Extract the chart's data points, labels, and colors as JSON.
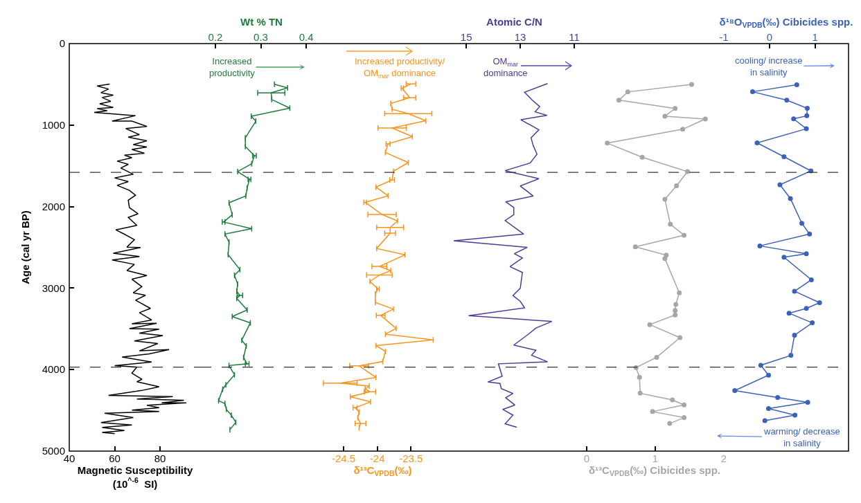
{
  "chart_data": [
    {
      "type": "line",
      "orientation": "horizontal",
      "ylabel": "Age (cal yr BP)",
      "ylim": [
        5000,
        0
      ],
      "yticks": [
        0,
        1000,
        2000,
        3000,
        4000,
        5000
      ],
      "xlabel": "Magnetic Susceptibility\n(10$^{^-6}$  SI)",
      "xlim": [
        40,
        98
      ],
      "xticks": [
        40,
        60,
        80
      ],
      "ref_lines": [
        {
          "axis": "y",
          "value": 1580,
          "line_style": "dashed",
          "color": "#333333"
        },
        {
          "axis": "y",
          "value": 3970,
          "line_style": "dashed",
          "color": "#333333"
        }
      ],
      "series": [
        {
          "color": "#000000",
          "x": [
            496,
            520,
            557,
            602,
            632,
            663,
            708,
            738,
            784,
            799,
            823,
            845,
            860,
            884,
            951,
            951,
            1017,
            1042,
            1117,
            1148,
            1193,
            1239,
            1269,
            1299,
            1345,
            1369,
            1400,
            1442,
            1481,
            1527,
            1603,
            1648,
            1694,
            1739,
            1800,
            1860,
            1921,
            2012,
            2088,
            2133,
            2230,
            2285,
            2339,
            2406,
            2497,
            2503,
            2573,
            2612,
            2655,
            2709,
            2785,
            2846,
            2891,
            2982,
            3058,
            3088,
            3149,
            3249,
            3301,
            3391,
            3437,
            3431,
            3498,
            3504,
            3552,
            3582,
            3649,
            3680,
            3770,
            3755,
            3807,
            3846,
            3907,
            3952,
            3968,
            4043,
            4119,
            4149,
            4210,
            4256,
            4316,
            4331,
            4362,
            4377,
            4407,
            4407,
            4438,
            4468,
            4498,
            4513,
            4535,
            4589,
            4650,
            4680,
            4710,
            4747,
            4771,
            4786
          ],
          "values": [
            57.8,
            52.3,
            57.3,
            54.0,
            59.4,
            54.5,
            58.3,
            53.4,
            59.4,
            52.3,
            56.7,
            51.0,
            57.8,
            69.2,
            58.9,
            67.6,
            74.2,
            64.9,
            70.9,
            66.0,
            74.2,
            68.2,
            74.2,
            67.6,
            73.1,
            64.3,
            67.6,
            61.1,
            66.0,
            62.7,
            68.2,
            60.0,
            66.0,
            61.1,
            66.5,
            69.2,
            66.0,
            66.5,
            70.3,
            66.0,
            69.8,
            60.5,
            64.3,
            68.7,
            65.4,
            71.4,
            59.4,
            70.9,
            58.9,
            68.7,
            65.4,
            74.2,
            67.6,
            72.0,
            68.2,
            73.6,
            69.2,
            75.8,
            70.9,
            76.3,
            67.6,
            78.5,
            66.5,
            79.6,
            70.9,
            81.2,
            68.7,
            79.0,
            70.9,
            84.0,
            75.2,
            63.3,
            76.3,
            60.0,
            69.8,
            67.6,
            72.0,
            69.8,
            79.6,
            72.0,
            57.3,
            85.6,
            69.8,
            90.5,
            80.7,
            91.6,
            74.2,
            79.6,
            67.6,
            79.6,
            55.6,
            68.2,
            54.0,
            67.6,
            54.5,
            64.3,
            54.5,
            60.0
          ]
        }
      ]
    },
    {
      "type": "line",
      "orientation": "horizontal",
      "ylim": [
        5000,
        0
      ],
      "tick_labels": "x",
      "xlabel": "Wt % TN",
      "xlim": [
        0.168,
        0.435
      ],
      "xticks": [
        0.2,
        0.3,
        0.4
      ],
      "ref_lines": [
        {
          "axis": "y",
          "value": 1580,
          "line_style": "dashed",
          "color": "#333333"
        },
        {
          "axis": "y",
          "value": 3970,
          "line_style": "dashed",
          "color": "#333333"
        }
      ],
      "annotations": [
        "Increased\nproductivity"
      ],
      "series": [
        {
          "color": "#1e7b3c",
          "x": [
            498,
            544,
            604,
            686,
            792,
            891,
            951,
            1156,
            1262,
            1375,
            1474,
            1570,
            1665,
            1771,
            1870,
            1952,
            2100,
            2189,
            2270,
            2337,
            2436,
            2589,
            2773,
            2843,
            2949,
            3038,
            3091,
            3126,
            3268,
            3349,
            3427,
            3639,
            3710,
            3851,
            3929,
            3950,
            4064,
            4187,
            4240,
            4382,
            4417,
            4488,
            4559,
            4647,
            4736
          ],
          "values": [
            0.33,
            0.359,
            0.323,
            0.324,
            0.364,
            0.279,
            0.289,
            0.266,
            0.266,
            0.286,
            0.28,
            0.249,
            0.275,
            0.27,
            0.267,
            0.23,
            0.237,
            0.218,
            0.28,
            0.221,
            0.23,
            0.228,
            0.254,
            0.242,
            0.249,
            0.247,
            0.254,
            0.247,
            0.27,
            0.237,
            0.277,
            0.258,
            0.268,
            0.262,
            0.27,
            0.23,
            0.242,
            0.223,
            0.216,
            0.207,
            0.221,
            0.224,
            0.235,
            0.245,
            0.232
          ],
          "errors": [
            null,
            null,
            0.03,
            null,
            null,
            null,
            null,
            null,
            null,
            0.004,
            null,
            null,
            0.003,
            null,
            null,
            null,
            null,
            0.003,
            null,
            null,
            null,
            null,
            null,
            null,
            null,
            null,
            0.006,
            null,
            null,
            null,
            null,
            null,
            null,
            null,
            0.004,
            null,
            null,
            null,
            null,
            null,
            null,
            null,
            null,
            null,
            null
          ]
        }
      ]
    },
    {
      "type": "line",
      "orientation": "horizontal",
      "ylim": [
        5000,
        0
      ],
      "tick_labels": "x",
      "xlabel": "δ¹³C$_{VPDB}$(‰)",
      "xlim": [
        -24.82,
        -23.02
      ],
      "xticks": [
        -24.5,
        -24,
        -23.5
      ],
      "ref_lines": [
        {
          "axis": "y",
          "value": 1580,
          "line_style": "dashed",
          "color": "#333333"
        },
        {
          "axis": "y",
          "value": 3970,
          "line_style": "dashed",
          "color": "#333333"
        }
      ],
      "annotations": [
        "Increased productivity/\nOM$_{mar}$ dominance"
      ],
      "series": [
        {
          "color": "#f7941d",
          "x": [
            495,
            548,
            664,
            735,
            806,
            859,
            947,
            1036,
            1142,
            1230,
            1336,
            1460,
            1566,
            1672,
            1761,
            1867,
            1948,
            2097,
            2175,
            2256,
            2327,
            2514,
            2592,
            2734,
            2787,
            2840,
            2918,
            3010,
            3070,
            3176,
            3257,
            3335,
            3494,
            3565,
            3636,
            3706,
            3777,
            3901,
            3954,
            4095,
            4166,
            4202,
            4237,
            4272,
            4333,
            4396,
            4467,
            4520,
            4591,
            4661,
            4714
          ],
          "values": [
            -23.5,
            -23.63,
            -23.52,
            -23.8,
            -23.78,
            -23.54,
            -23.28,
            -23.78,
            -23.48,
            -23.84,
            -23.88,
            -23.54,
            -23.76,
            -23.78,
            -24.02,
            -23.84,
            -24.18,
            -23.93,
            -23.7,
            -23.81,
            -23.81,
            -24.01,
            -23.59,
            -23.97,
            -23.8,
            -23.97,
            -24.11,
            -23.99,
            -24.03,
            -24.03,
            -23.76,
            -23.95,
            -23.72,
            -23.88,
            -23.17,
            -24.02,
            -23.88,
            -23.92,
            -24.27,
            -24.02,
            -24.55,
            -24.12,
            -24.18,
            -24.11,
            -24.4,
            -24.1,
            -24.33,
            -24.27,
            -24.29,
            -24.25,
            -24.27
          ],
          "errors": [
            0.07,
            0.015,
            0.09,
            null,
            null,
            0.35,
            null,
            0.21,
            null,
            0.03,
            null,
            null,
            null,
            0.035,
            null,
            null,
            0.02,
            0.21,
            null,
            0.2,
            0.08,
            null,
            null,
            0.11,
            null,
            0.19,
            null,
            0.02,
            null,
            null,
            null,
            0.065,
            null,
            null,
            null,
            null,
            null,
            null,
            0.14,
            null,
            0.25,
            null,
            null,
            0.085,
            null,
            null,
            0.03,
            null,
            null,
            0.08,
            null
          ]
        }
      ]
    },
    {
      "type": "line",
      "orientation": "horizontal",
      "ylim": [
        5000,
        0
      ],
      "tick_labels": "x",
      "xlabel": "Atomic C/N",
      "xlim": [
        15.85,
        10.59
      ],
      "xticks": [
        15,
        13,
        11
      ],
      "ref_lines": [
        {
          "axis": "y",
          "value": 1580,
          "line_style": "dashed",
          "color": "#333333"
        },
        {
          "axis": "y",
          "value": 3970,
          "line_style": "dashed",
          "color": "#333333"
        }
      ],
      "annotations": [
        "OM$_{mar}$\ndominance"
      ],
      "series": [
        {
          "color": "#4f3a98",
          "x": [
            490,
            597,
            686,
            774,
            837,
            881,
            934,
            1058,
            1156,
            1251,
            1358,
            1464,
            1559,
            1658,
            1747,
            1870,
            1941,
            2012,
            2100,
            2171,
            2337,
            2419,
            2500,
            2578,
            2631,
            2737,
            2808,
            3002,
            3091,
            3162,
            3243,
            3339,
            3409,
            3490,
            3561,
            3699,
            3763,
            3823,
            3904,
            3929,
            4081,
            4152,
            4170,
            4233,
            4293,
            4346,
            4435,
            4488,
            4559,
            4665,
            4707
          ],
          "values": [
            11.99,
            12.84,
            12.58,
            12.28,
            12.45,
            12.01,
            12.98,
            12.31,
            12.6,
            12.52,
            12.38,
            12.63,
            13.56,
            12.31,
            13.0,
            12.52,
            13.54,
            13.24,
            13.24,
            13.56,
            12.87,
            15.46,
            12.74,
            13.22,
            12.92,
            13.38,
            12.92,
            13.0,
            13.27,
            13.0,
            12.84,
            14.91,
            11.83,
            12.42,
            12.68,
            13.24,
            12.42,
            12.58,
            11.99,
            13.81,
            13.67,
            14.2,
            13.75,
            13.7,
            13.27,
            13.54,
            13.2,
            13.65,
            13.27,
            13.56,
            13.13
          ]
        }
      ]
    },
    {
      "type": "line",
      "orientation": "horizontal",
      "ylim": [
        5000,
        0
      ],
      "tick_labels": "x",
      "xlabel": "δ¹³C$_{VPDB}$(‰) Cibicides spp.",
      "xlim": [
        -0.02,
        2
      ],
      "xticks": [
        0,
        1,
        2
      ],
      "ref_lines": [
        {
          "axis": "y",
          "value": 1580,
          "line_style": "dashed",
          "color": "#333333"
        },
        {
          "axis": "y",
          "value": 3970,
          "line_style": "dashed",
          "color": "#333333"
        }
      ],
      "series": [
        {
          "color": "#a6a6a6",
          "marker": "circle",
          "x": [
            501,
            593,
            694,
            796,
            891,
            925,
            1051,
            1221,
            1394,
            1571,
            1744,
            1910,
            2216,
            2351,
            2494,
            2596,
            2637,
            3058,
            3200,
            3275,
            3329,
            3448,
            3608,
            3849,
            3975,
            4094,
            4290,
            4372,
            4433,
            4515,
            4589,
            4661
          ],
          "values": [
            1.53,
            0.6,
            0.47,
            1.29,
            1.14,
            1.73,
            1.4,
            0.3,
            0.81,
            1.47,
            1.31,
            1.14,
            1.22,
            1.42,
            0.71,
            1.16,
            1.14,
            1.35,
            1.3,
            1.29,
            1.29,
            0.92,
            1.36,
            1.02,
            0.72,
            0.77,
            0.78,
            1.25,
            1.42,
            0.96,
            1.42,
            1.21
          ]
        }
      ]
    },
    {
      "type": "line",
      "orientation": "horizontal",
      "ylim": [
        5000,
        0
      ],
      "tick_labels": "x",
      "xlabel": "δ¹⁸O$_{VPDB}$(‰) Cibicides spp.",
      "xlim": [
        -1,
        1.735
      ],
      "xticks": [
        -1,
        0,
        1
      ],
      "ref_lines": [
        {
          "axis": "y",
          "value": 1580,
          "line_style": "dashed",
          "color": "#333333"
        },
        {
          "axis": "y",
          "value": 3970,
          "line_style": "dashed",
          "color": "#333333"
        }
      ],
      "annotations": [
        "cooling/ increase\nin salinity",
        "warming/ decrease\nin salinity"
      ],
      "series": [
        {
          "color": "#3b62b8",
          "marker": "circle",
          "x": [
            506,
            591,
            694,
            794,
            886,
            923,
            1045,
            1218,
            1388,
            1562,
            1732,
            1901,
            2204,
            2337,
            2482,
            2578,
            2621,
            2898,
            3038,
            3179,
            3249,
            3308,
            3426,
            3578,
            3825,
            3947,
            4068,
            4257,
            4342,
            4401,
            4478,
            4559,
            4626
          ],
          "values": [
            0.6,
            -0.37,
            0.38,
            0.83,
            0.82,
            0.53,
            0.81,
            -0.27,
            0.32,
            0.91,
            0.23,
            0.46,
            0.71,
            0.88,
            -0.21,
            0.81,
            0.32,
            0.92,
            0.55,
            1.1,
            0.81,
            0.43,
            0.94,
            0.55,
            0.47,
            -0.19,
            -0.02,
            -0.76,
            0.18,
            0.84,
            -0.02,
            0.56,
            -0.1
          ]
        }
      ]
    }
  ]
}
